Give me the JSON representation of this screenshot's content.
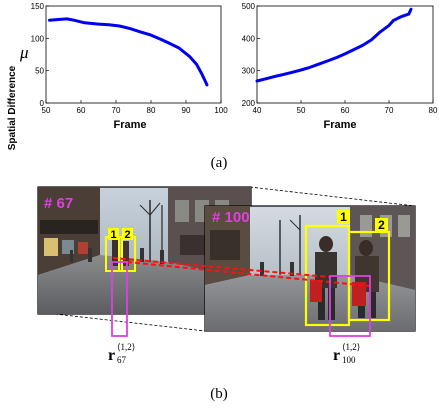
{
  "chart_data": [
    {
      "type": "line",
      "ylabel": "Spatial Difference",
      "ylabel_symbol": "μ",
      "xlabel": "Frame",
      "xlim": [
        50,
        100
      ],
      "ylim": [
        0,
        150
      ],
      "x_ticks": [
        "50",
        "60",
        "70",
        "80",
        "90",
        "100"
      ],
      "y_ticks": [
        "0",
        "50",
        "100",
        "150"
      ],
      "grid": false,
      "series": [
        {
          "color": "#0000ee",
          "points": [
            [
              51,
              128
            ],
            [
              53,
              129
            ],
            [
              56,
              130
            ],
            [
              58,
              128
            ],
            [
              61,
              124
            ],
            [
              65,
              122
            ],
            [
              68,
              121
            ],
            [
              71,
              119
            ],
            [
              74,
              115
            ],
            [
              77,
              110
            ],
            [
              80,
              105
            ],
            [
              83,
              98
            ],
            [
              85,
              93
            ],
            [
              88,
              85
            ],
            [
              91,
              72
            ],
            [
              93,
              60
            ],
            [
              94.5,
              45
            ],
            [
              96,
              28
            ]
          ]
        }
      ]
    },
    {
      "type": "line",
      "xlabel": "Frame",
      "xlim": [
        40,
        80
      ],
      "ylim": [
        200,
        500
      ],
      "x_ticks": [
        "40",
        "50",
        "60",
        "70",
        "80"
      ],
      "y_ticks": [
        "200",
        "300",
        "400",
        "500"
      ],
      "grid": false,
      "series": [
        {
          "color": "#0000ee",
          "points": [
            [
              40,
              268
            ],
            [
              42,
              275
            ],
            [
              44,
              282
            ],
            [
              46,
              288
            ],
            [
              48,
              295
            ],
            [
              50,
              302
            ],
            [
              52,
              310
            ],
            [
              54,
              320
            ],
            [
              56,
              330
            ],
            [
              58,
              340
            ],
            [
              60,
              352
            ],
            [
              62,
              365
            ],
            [
              64,
              378
            ],
            [
              66,
              395
            ],
            [
              68,
              420
            ],
            [
              70,
              440
            ],
            [
              71,
              455
            ],
            [
              72,
              462
            ],
            [
              73,
              468
            ],
            [
              74.5,
              475
            ],
            [
              75,
              490
            ]
          ]
        }
      ]
    }
  ],
  "caption_a": "(a)",
  "caption_b": "(b)",
  "photo_left": {
    "frame_label": "# 67",
    "box_label_1": "1",
    "box_label_2": "2"
  },
  "photo_right": {
    "frame_label": "# 100",
    "box_label_1": "1",
    "box_label_2": "2"
  },
  "vector_label_left": {
    "base": "r",
    "sup": "⟨1,2⟩",
    "sub": "67"
  },
  "vector_label_right": {
    "base": "r",
    "sup": "⟨1,2⟩",
    "sub": "100"
  },
  "colors": {
    "line": "#0000ee",
    "box": "#ffff00",
    "magenta": "#e040e0",
    "track": "#ff1010",
    "frame_label": "#e040e0"
  }
}
